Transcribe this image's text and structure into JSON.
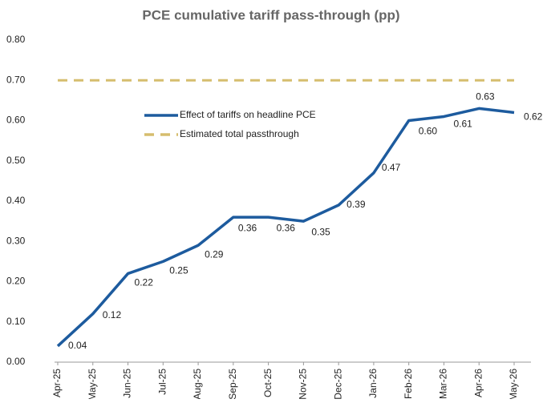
{
  "chart_data": {
    "type": "line",
    "title": "PCE cumulative tariff pass-through  (pp)",
    "categories": [
      "Apr-25",
      "May-25",
      "Jun-25",
      "Jul-25",
      "Aug-25",
      "Sep-25",
      "Oct-25",
      "Nov-25",
      "Dec-25",
      "Jan-26",
      "Feb-26",
      "Mar-26",
      "Apr-26",
      "May-26"
    ],
    "series": [
      {
        "name": "Effect of tariffs on headline PCE",
        "color": "#1d5b9e",
        "values": [
          0.04,
          0.12,
          0.22,
          0.25,
          0.29,
          0.36,
          0.36,
          0.35,
          0.39,
          0.47,
          0.6,
          0.61,
          0.63,
          0.62
        ],
        "value_labels": [
          "0.04",
          "0.12",
          "0.22",
          "0.25",
          "0.29",
          "0.36",
          "0.36",
          "0.35",
          "0.39",
          "0.47",
          "0.60",
          "0.61",
          "0.63",
          "0.62"
        ]
      },
      {
        "name": "Estimated total passthrough",
        "color": "#d6bd6e",
        "dashed": true,
        "values": [
          0.7,
          0.7,
          0.7,
          0.7,
          0.7,
          0.7,
          0.7,
          0.7,
          0.7,
          0.7,
          0.7,
          0.7,
          0.7,
          0.7
        ]
      }
    ],
    "ylim": [
      0,
      0.8
    ],
    "yticks": [
      {
        "value": 0,
        "label": "0.00"
      },
      {
        "value": 0.1,
        "label": "0.10"
      },
      {
        "value": 0.2,
        "label": "0.20"
      },
      {
        "value": 0.3,
        "label": "0.30"
      },
      {
        "value": 0.4,
        "label": "0.40"
      },
      {
        "value": 0.5,
        "label": "0.50"
      },
      {
        "value": 0.6,
        "label": "0.60"
      },
      {
        "value": 0.7,
        "label": "0.70"
      },
      {
        "value": 0.8,
        "label": "0.80"
      }
    ],
    "grid": false
  }
}
